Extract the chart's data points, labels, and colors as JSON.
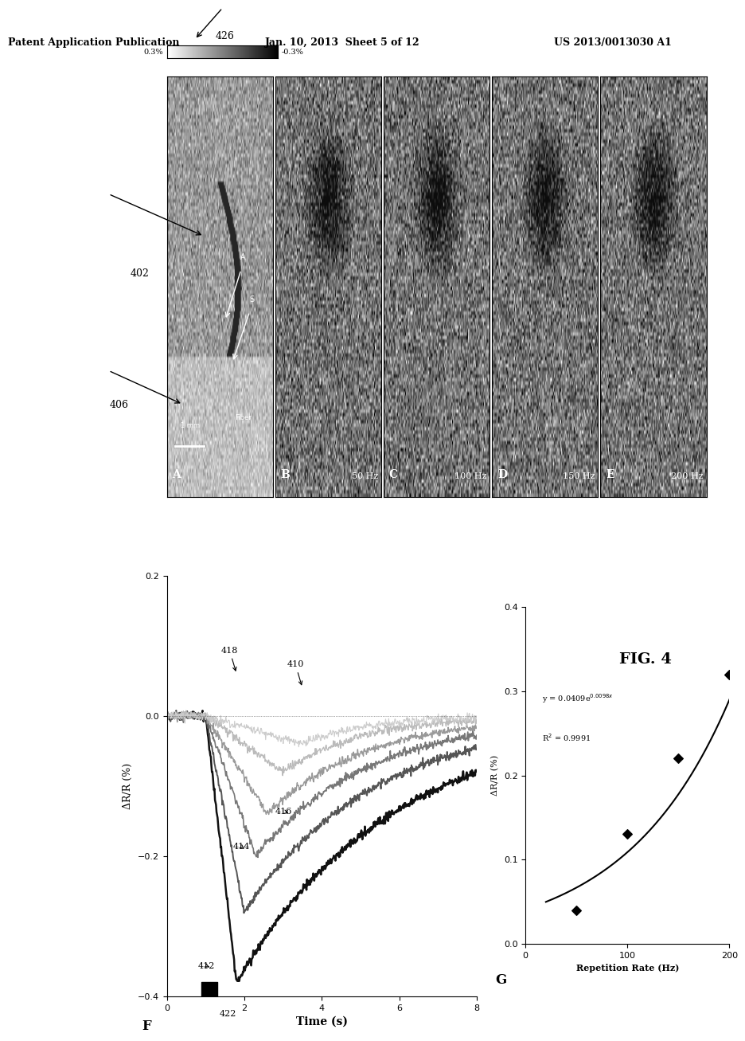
{
  "header_left": "Patent Application Publication",
  "header_mid": "Jan. 10, 2013  Sheet 5 of 12",
  "header_right": "US 2013/0013030 A1",
  "fig_label": "FIG. 4",
  "colorbar_label_high": "0.3%",
  "colorbar_label_low": "-0.3%",
  "colorbar_ref": "426",
  "panel_labels": [
    "A",
    "B",
    "C",
    "D",
    "E"
  ],
  "panel_freqs": [
    "",
    "50 Hz",
    "100 Hz",
    "150 Hz",
    "200 Hz"
  ],
  "plot_F_label": "F",
  "plot_G_label": "G",
  "F_ylabel": "ΔR/R (%)",
  "F_xlabel": "Time (s)",
  "F_xlim": [
    0,
    8
  ],
  "F_ylim": [
    -0.4,
    0.2
  ],
  "F_yticks": [
    0.2,
    0,
    -0.2,
    -0.4
  ],
  "F_xticks": [
    0,
    2,
    4,
    6,
    8
  ],
  "G_ylabel": "ΔR/R (%)",
  "G_xlabel": "Repetition Rate (Hz)",
  "G_xlim": [
    0,
    200
  ],
  "G_ylim": [
    0,
    0.4
  ],
  "G_yticks": [
    0.0,
    0.1,
    0.2,
    0.3,
    0.4
  ],
  "G_xticks": [
    0,
    100,
    200
  ],
  "G_data_x": [
    50,
    100,
    150,
    200
  ],
  "G_data_y": [
    0.04,
    0.13,
    0.22,
    0.32
  ],
  "background_color": "#ffffff"
}
